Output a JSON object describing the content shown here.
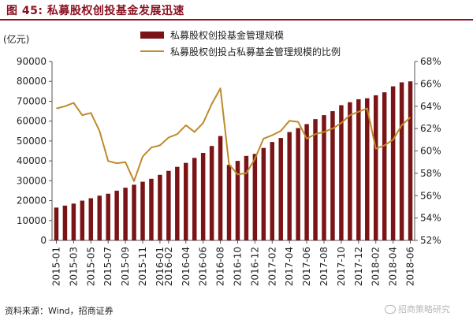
{
  "figure": {
    "title": "图 45:  私募股权创投基金发展迅速",
    "source": "资料来源：Wind，招商证券",
    "watermark": "招商策略研究"
  },
  "colors": {
    "title": "#8b0f1f",
    "bar": "#7a1416",
    "line": "#bf8a2a"
  },
  "chart_data": {
    "type": "bar",
    "title": "",
    "y_unit_label": "(亿元)",
    "legend_placement": "top-center",
    "grid": false,
    "ylim": [
      0,
      90000
    ],
    "y2lim": [
      52,
      68
    ],
    "y_ticks": [
      "0",
      "10000",
      "20000",
      "30000",
      "40000",
      "50000",
      "60000",
      "70000",
      "80000",
      "90000"
    ],
    "y2_ticks": [
      "52%",
      "54%",
      "56%",
      "58%",
      "60%",
      "62%",
      "64%",
      "66%",
      "68%"
    ],
    "x_tick_labels": [
      "2015-01",
      "2015-03",
      "2015-05",
      "2015-07",
      "2015-09",
      "2015-11",
      "2016-01",
      "2016-02",
      "2016-04",
      "2016-06",
      "2016-08",
      "2016-10",
      "2016-12",
      "2017-02",
      "2017-04",
      "2017-06",
      "2017-08",
      "2017-10",
      "2017-12",
      "2018-02",
      "2018-04",
      "2018-06"
    ],
    "categories": [
      "2015-01",
      "2015-02",
      "2015-03",
      "2015-04",
      "2015-05",
      "2015-06",
      "2015-07",
      "2015-08",
      "2015-09",
      "2015-10",
      "2015-11",
      "2015-12",
      "2016-01",
      "2016-02",
      "2016-03",
      "2016-04",
      "2016-05",
      "2016-06",
      "2016-07",
      "2016-08",
      "2016-09",
      "2016-10",
      "2016-11",
      "2016-12",
      "2017-01",
      "2017-02",
      "2017-03",
      "2017-04",
      "2017-05",
      "2017-06",
      "2017-07",
      "2017-08",
      "2017-09",
      "2017-10",
      "2017-11",
      "2017-12",
      "2018-01",
      "2018-02",
      "2018-03",
      "2018-04",
      "2018-05",
      "2018-06"
    ],
    "series": [
      {
        "name": "私募股权创投基金管理规模",
        "type": "bar",
        "axis": "left",
        "values": [
          16500,
          17500,
          18500,
          20000,
          21200,
          22500,
          23500,
          25000,
          26500,
          28000,
          29500,
          31000,
          33000,
          35000,
          37000,
          39000,
          41500,
          44000,
          47500,
          52500,
          38000,
          40000,
          42500,
          43500,
          46500,
          49500,
          51500,
          54500,
          56500,
          58500,
          61000,
          63000,
          65000,
          68000,
          69500,
          71000,
          71500,
          73000,
          74500,
          77500,
          79500,
          80000
        ]
      },
      {
        "name": "私募股权创投占私募基金管理规模的比例",
        "type": "line",
        "axis": "right",
        "values": [
          63.8,
          64.0,
          64.3,
          63.2,
          63.4,
          61.8,
          59.1,
          58.9,
          59.0,
          57.3,
          59.5,
          60.3,
          60.5,
          61.2,
          61.5,
          62.3,
          61.7,
          62.5,
          64.2,
          65.6,
          58.8,
          57.9,
          58.0,
          59.3,
          61.1,
          61.4,
          61.8,
          62.7,
          62.6,
          61.1,
          61.5,
          61.7,
          62.0,
          62.5,
          63.2,
          63.5,
          63.8,
          60.2,
          60.5,
          61.0,
          62.3,
          63.0
        ]
      }
    ]
  }
}
